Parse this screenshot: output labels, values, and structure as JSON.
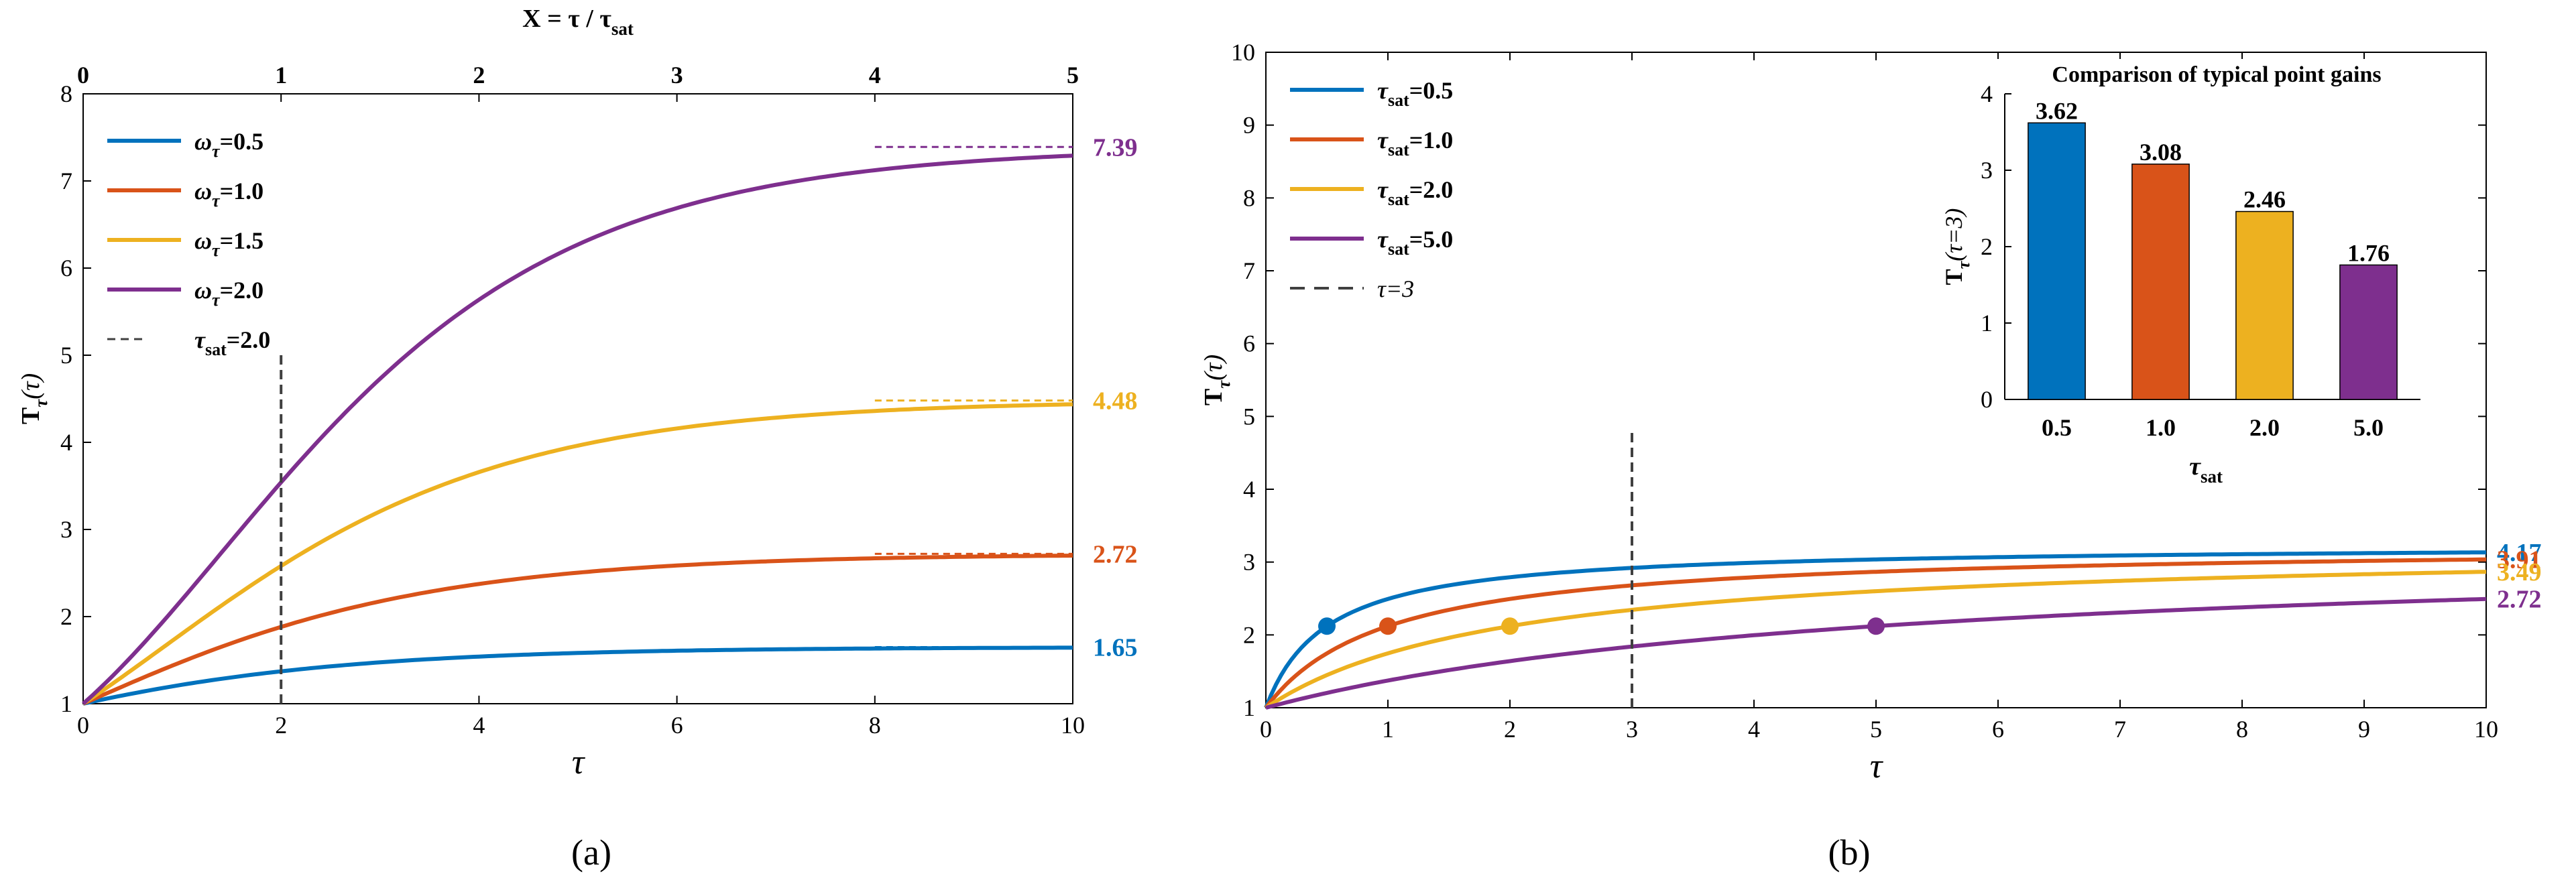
{
  "colors": {
    "blue": "#0072BD",
    "orange": "#D95319",
    "yellow": "#EDB120",
    "purple": "#7E2F8E",
    "black": "#000000",
    "dashed_gray": "#404040"
  },
  "chart_data": [
    {
      "id": "a",
      "type": "line",
      "caption": "(a)",
      "xlabel": "τ",
      "ylabel_main": "T",
      "ylabel_sub": "τ",
      "ylabel_arg": "(τ)",
      "top_axis_label": "X = τ / τ",
      "top_axis_label_sub": "sat",
      "xlim": [
        0,
        10
      ],
      "ylim": [
        1,
        8
      ],
      "xticks": [
        0,
        2,
        4,
        6,
        8,
        10
      ],
      "yticks": [
        1,
        2,
        3,
        4,
        5,
        6,
        7,
        8
      ],
      "top_xticks": [
        0,
        1,
        2,
        3,
        4,
        5
      ],
      "tau_sat": 2.0,
      "series": [
        {
          "prefix": "ω",
          "sub": "τ",
          "suffix": "=0.5",
          "omega": 0.5,
          "color": "#0072BD",
          "asymptote": 1.65,
          "asymptote_label": "1.65"
        },
        {
          "prefix": "ω",
          "sub": "τ",
          "suffix": "=1.0",
          "omega": 1.0,
          "color": "#D95319",
          "asymptote": 2.72,
          "asymptote_label": "2.72"
        },
        {
          "prefix": "ω",
          "sub": "τ",
          "suffix": "=1.5",
          "omega": 1.5,
          "color": "#EDB120",
          "asymptote": 4.48,
          "asymptote_label": "4.48"
        },
        {
          "prefix": "ω",
          "sub": "τ",
          "suffix": "=2.0",
          "omega": 2.0,
          "color": "#7E2F8E",
          "asymptote": 7.39,
          "asymptote_label": "7.39"
        }
      ],
      "vline": {
        "x": 2,
        "y_to": 5,
        "legend_prefix": "τ",
        "legend_sub": "sat",
        "legend_suffix": "=2.0"
      },
      "asymptote_x_range": [
        8,
        10
      ]
    },
    {
      "id": "b",
      "type": "line",
      "caption": "(b)",
      "xlabel": "τ",
      "ylabel_main": "T",
      "ylabel_sub": "τ",
      "ylabel_arg": "(τ)",
      "xlim": [
        0,
        10
      ],
      "ylim": [
        1,
        10
      ],
      "xticks": [
        0,
        1,
        2,
        3,
        4,
        5,
        6,
        7,
        8,
        9,
        10
      ],
      "yticks": [
        1,
        2,
        3,
        4,
        5,
        6,
        7,
        8,
        9,
        10
      ],
      "series": [
        {
          "prefix": "τ",
          "sub": "sat",
          "suffix": "=0.5",
          "tau_sat": 0.5,
          "color": "#0072BD",
          "end_label": "4.17",
          "marker": [
            0.5,
            2.12
          ]
        },
        {
          "prefix": "τ",
          "sub": "sat",
          "suffix": "=1.0",
          "tau_sat": 1.0,
          "color": "#D95319",
          "end_label": "3.91",
          "marker": [
            1.0,
            2.12
          ]
        },
        {
          "prefix": "τ",
          "sub": "sat",
          "suffix": "=2.0",
          "tau_sat": 2.0,
          "color": "#EDB120",
          "end_label": "3.49",
          "marker": [
            2.0,
            2.12
          ]
        },
        {
          "prefix": "τ",
          "sub": "sat",
          "suffix": "=5.0",
          "tau_sat": 5.0,
          "color": "#7E2F8E",
          "end_label": "2.72",
          "marker": [
            5.0,
            2.12
          ]
        }
      ],
      "vline": {
        "x": 3,
        "y_to": 4.8,
        "legend_label": "τ=3"
      }
    },
    {
      "id": "b-inset",
      "type": "bar",
      "title": "Comparison of typical point gains",
      "xlabel_main": "τ",
      "xlabel_sub": "sat",
      "ylabel_main": "T",
      "ylabel_sub": "τ",
      "ylabel_arg": "(τ=3)",
      "categories": [
        "0.5",
        "1.0",
        "2.0",
        "5.0"
      ],
      "values": [
        3.62,
        3.08,
        2.46,
        1.76
      ],
      "value_labels": [
        "3.62",
        "3.08",
        "2.46",
        "1.76"
      ],
      "colors": [
        "#0072BD",
        "#D95319",
        "#EDB120",
        "#7E2F8E"
      ],
      "ylim": [
        0,
        4
      ],
      "yticks": [
        0,
        1,
        2,
        3,
        4
      ]
    }
  ]
}
